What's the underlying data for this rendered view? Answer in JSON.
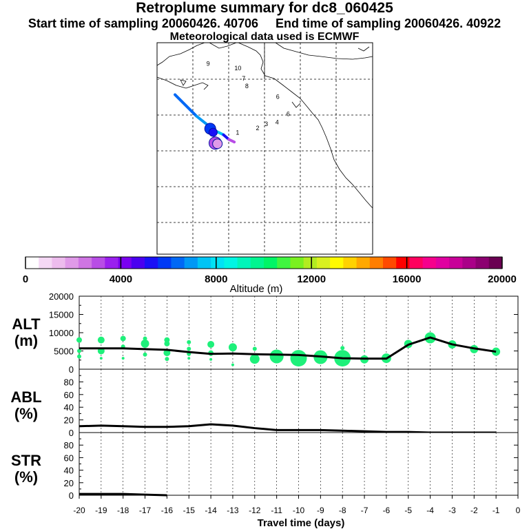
{
  "header": {
    "title": "Retroplume summary for dc8_060425",
    "start_label": "Start time of sampling 20060426. 40706",
    "end_label": "End time of sampling 20060426. 40922",
    "met_label": "Meteorological data used is ECMWF"
  },
  "map": {
    "day_labels": [
      {
        "text": "1",
        "lon": -137.6,
        "lat": 24.3
      },
      {
        "text": "2",
        "lon": -132.0,
        "lat": 25.6
      },
      {
        "text": "3",
        "lon": -129.6,
        "lat": 26.7
      },
      {
        "text": "4",
        "lon": -126.6,
        "lat": 27.2
      },
      {
        "text": "6",
        "lon": -123.5,
        "lat": 29.5
      },
      {
        "text": "6",
        "lon": -126.4,
        "lat": 34.3
      },
      {
        "text": "7",
        "lon": -135.9,
        "lat": 39.4
      },
      {
        "text": "8",
        "lon": -135.0,
        "lat": 37.3
      },
      {
        "text": "9",
        "lon": -145.8,
        "lat": 43.6
      },
      {
        "text": "10",
        "lon": -137.5,
        "lat": 42.3
      }
    ],
    "plume_path": [
      {
        "lon": -155.0,
        "lat": 35.5,
        "alt": 6500
      },
      {
        "lon": -149.0,
        "lat": 29.5,
        "alt": 6800
      },
      {
        "lon": -144.0,
        "lat": 25.5,
        "alt": 7500
      },
      {
        "lon": -141.5,
        "lat": 24.3,
        "alt": 5000
      },
      {
        "lon": -140.0,
        "lat": 23.0,
        "alt": 3000
      },
      {
        "lon": -138.5,
        "lat": 22.3,
        "alt": 2500
      }
    ]
  },
  "colorbar": {
    "label": "Altitude (m)",
    "ticks": [
      "0",
      "4000",
      "8000",
      "12000",
      "16000",
      "20000"
    ],
    "colors": [
      "#ffffff",
      "#f5d8f5",
      "#edbced",
      "#e09ae8",
      "#cf75e3",
      "#b84de6",
      "#9a20ee",
      "#7a00f0",
      "#4a00f0",
      "#1a10f6",
      "#003af5",
      "#0068f5",
      "#0098f5",
      "#00c4f5",
      "#00e2f5",
      "#00f5e4",
      "#00f5ba",
      "#00f590",
      "#00f566",
      "#40f540",
      "#7af020",
      "#b2ec20",
      "#d8f020",
      "#fffa00",
      "#ffd200",
      "#ffa800",
      "#ff7e00",
      "#ff4a00",
      "#ff0000",
      "#ff005e",
      "#f6008c",
      "#e000a0",
      "#c80098",
      "#aa0088",
      "#8c0070",
      "#6a0052"
    ]
  },
  "chart_data": [
    {
      "type": "scatter+line",
      "ylabel": "ALT",
      "yunits": "(m)",
      "ylim": [
        0,
        20000
      ],
      "yticks": [
        0,
        5000,
        10000,
        15000,
        20000
      ],
      "xlim": [
        -20,
        0
      ],
      "line": {
        "x": [
          -20,
          -19,
          -18,
          -17,
          -16,
          -15,
          -14,
          -13,
          -12,
          -11,
          -10,
          -9,
          -8,
          -7,
          -6,
          -5,
          -4,
          -3,
          -2,
          -1
        ],
        "y": [
          5700,
          5700,
          5700,
          5500,
          5300,
          4700,
          4200,
          4300,
          4100,
          4000,
          3900,
          3500,
          3000,
          2900,
          2900,
          6700,
          8700,
          6800,
          5700,
          4800
        ]
      },
      "bubbles": [
        {
          "x": -20.0,
          "y": 8000,
          "s": 4
        },
        {
          "x": -20.0,
          "y": 5000,
          "s": 3
        },
        {
          "x": -20.0,
          "y": 3500,
          "s": 3
        },
        {
          "x": -19.0,
          "y": 8000,
          "s": 5
        },
        {
          "x": -19.0,
          "y": 5000,
          "s": 5
        },
        {
          "x": -19.0,
          "y": 3000,
          "s": 2
        },
        {
          "x": -18.0,
          "y": 8400,
          "s": 4
        },
        {
          "x": -18.0,
          "y": 6200,
          "s": 3
        },
        {
          "x": -18.0,
          "y": 3000,
          "s": 2
        },
        {
          "x": -17.0,
          "y": 8400,
          "s": 3
        },
        {
          "x": -17.0,
          "y": 7000,
          "s": 6
        },
        {
          "x": -17.0,
          "y": 4000,
          "s": 3
        },
        {
          "x": -16.0,
          "y": 8000,
          "s": 4
        },
        {
          "x": -16.0,
          "y": 7000,
          "s": 4
        },
        {
          "x": -16.0,
          "y": 4500,
          "s": 5
        },
        {
          "x": -16.0,
          "y": 2800,
          "s": 3
        },
        {
          "x": -15.0,
          "y": 7400,
          "s": 3
        },
        {
          "x": -15.0,
          "y": 5600,
          "s": 3
        },
        {
          "x": -15.0,
          "y": 4200,
          "s": 3
        },
        {
          "x": -15.0,
          "y": 3000,
          "s": 2
        },
        {
          "x": -14.0,
          "y": 6800,
          "s": 5
        },
        {
          "x": -14.0,
          "y": 4400,
          "s": 4
        },
        {
          "x": -14.0,
          "y": 2700,
          "s": 2
        },
        {
          "x": -13.0,
          "y": 6000,
          "s": 6
        },
        {
          "x": -13.0,
          "y": 1200,
          "s": 2
        },
        {
          "x": -12.0,
          "y": 5600,
          "s": 3
        },
        {
          "x": -12.0,
          "y": 2800,
          "s": 7
        },
        {
          "x": -11.0,
          "y": 3500,
          "s": 10
        },
        {
          "x": -10.0,
          "y": 3000,
          "s": 12
        },
        {
          "x": -9.0,
          "y": 3300,
          "s": 10
        },
        {
          "x": -8.0,
          "y": 5800,
          "s": 3
        },
        {
          "x": -8.0,
          "y": 3000,
          "s": 12
        },
        {
          "x": -7.0,
          "y": 5100,
          "s": 1
        },
        {
          "x": -7.0,
          "y": 2700,
          "s": 6
        },
        {
          "x": -6.0,
          "y": 3000,
          "s": 7
        },
        {
          "x": -5.0,
          "y": 6900,
          "s": 6
        },
        {
          "x": -4.0,
          "y": 8600,
          "s": 8
        },
        {
          "x": -3.0,
          "y": 6800,
          "s": 6
        },
        {
          "x": -2.0,
          "y": 5500,
          "s": 6
        },
        {
          "x": -1.0,
          "y": 4800,
          "s": 6
        }
      ]
    },
    {
      "type": "line",
      "ylabel": "ABL",
      "yunits": "(%)",
      "ylim": [
        0,
        100
      ],
      "yticks": [
        0,
        20,
        40,
        60,
        80
      ],
      "x": [
        -20,
        -19,
        -18,
        -17,
        -16,
        -15,
        -14,
        -13,
        -12,
        -11,
        -10,
        -9,
        -8,
        -7,
        -6,
        -5,
        -4,
        -3,
        -2,
        -1
      ],
      "y": [
        10,
        11,
        10,
        9,
        9,
        10,
        13,
        11,
        7,
        4,
        4,
        4,
        3,
        2,
        1,
        1,
        0,
        0,
        0,
        0
      ]
    },
    {
      "type": "line",
      "ylabel": "STR",
      "yunits": "(%)",
      "ylim": [
        0,
        100
      ],
      "yticks": [
        0,
        20,
        40,
        60,
        80
      ],
      "x": [
        -20,
        -19,
        -18,
        -17,
        -16
      ],
      "y": [
        2,
        2,
        2,
        1,
        0
      ]
    }
  ],
  "xaxis": {
    "label": "Travel time (days)",
    "ticks": [
      "-20",
      "-19",
      "-18",
      "-17",
      "-16",
      "-15",
      "-14",
      "-13",
      "-12",
      "-11",
      "-10",
      "-9",
      "-8",
      "-7",
      "-6",
      "-5",
      "-4",
      "-3",
      "-2",
      "-1",
      "0"
    ]
  }
}
